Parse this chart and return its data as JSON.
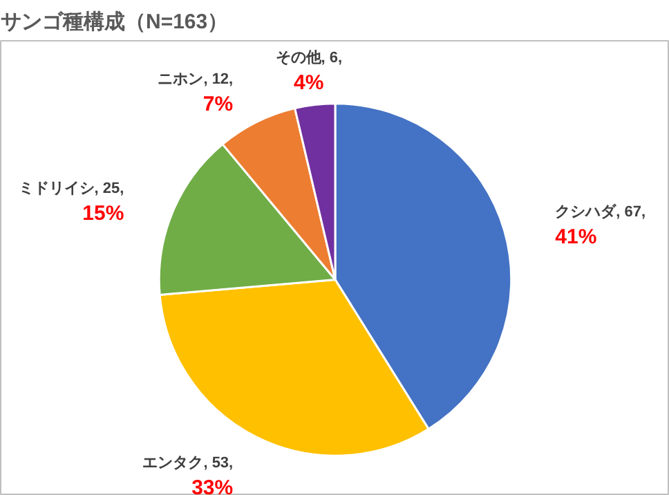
{
  "chart_data": {
    "type": "pie",
    "title": "サンゴ種構成（N=163）",
    "categories": [
      "クシハダ",
      "エンタク",
      "ミドリイシ",
      "ニホン",
      "その他"
    ],
    "values": [
      67,
      53,
      25,
      12,
      6
    ],
    "colors": [
      "#4472c4",
      "#ffc000",
      "#70ad47",
      "#ed7d31",
      "#7030a0"
    ],
    "value_labels": [
      "67, 41%",
      "53, 33%",
      "25, 15%",
      "12, 7%",
      "6, 4%"
    ]
  }
}
